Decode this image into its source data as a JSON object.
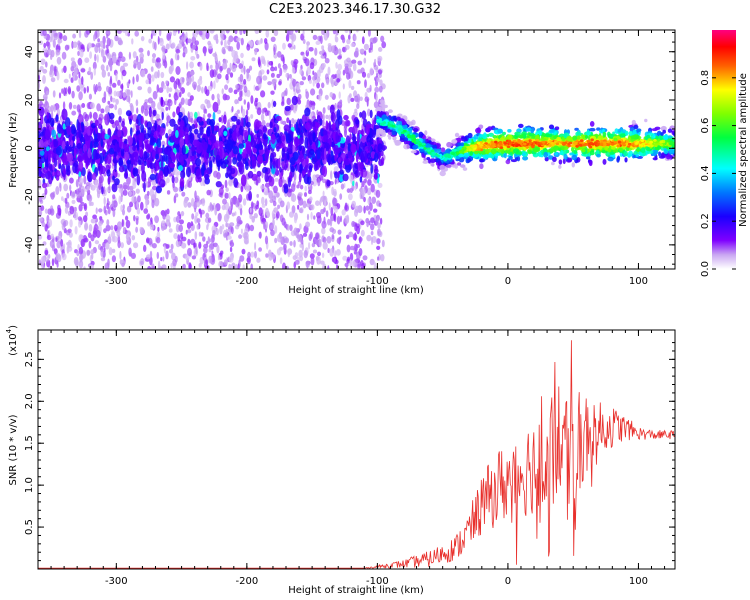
{
  "title": "C2E3.2023.346.17.30.G32",
  "chart_data": [
    {
      "type": "heatmap",
      "xlabel": "Height of straight line (km)",
      "ylabel": "Frequency (Hz)",
      "xlim": [
        -360,
        128
      ],
      "ylim": [
        -50,
        49
      ],
      "x_ticks": [
        -300,
        -200,
        -100,
        0,
        100
      ],
      "y_ticks": [
        -40,
        -20,
        0,
        20,
        40
      ],
      "colorbar": {
        "label": "Normalized spectral amplitude",
        "range": [
          0.0,
          1.0
        ],
        "ticks": [
          "0.0",
          "0.2",
          "0.4",
          "0.6",
          "0.8"
        ],
        "colormap": [
          "#ffffff",
          "#7f00ff",
          "#0000ff",
          "#00ffff",
          "#00ff00",
          "#ffff00",
          "#ff0000",
          "#ff0080"
        ]
      },
      "ridge": {
        "x": [
          -100,
          -90,
          -80,
          -70,
          -60,
          -50,
          -40,
          -30,
          -20,
          -10,
          0,
          20,
          40,
          60,
          80,
          100,
          128
        ],
        "y": [
          12,
          10,
          7,
          3,
          -1,
          -4,
          -2,
          0,
          1,
          1.5,
          2,
          2,
          2,
          2,
          2,
          2,
          2
        ],
        "amplitude": [
          0.4,
          0.5,
          0.5,
          0.55,
          0.5,
          0.45,
          0.5,
          0.7,
          0.8,
          0.85,
          0.85,
          0.85,
          0.8,
          0.85,
          0.85,
          0.8,
          0.6
        ]
      },
      "noise_region": {
        "x_range": [
          -360,
          -95
        ],
        "band_center": 0,
        "band_halfwidth": 10
      }
    },
    {
      "type": "line",
      "xlabel": "Height of straight line (km)",
      "ylabel": "SNR (10 * v/v)",
      "multiplier": "(x10",
      "multiplier_exp": "4",
      "multiplier_close": ")",
      "xlim": [
        -360,
        128
      ],
      "ylim": [
        0,
        2.85
      ],
      "x_ticks": [
        -300,
        -200,
        -100,
        0,
        100
      ],
      "y_ticks": [
        "0.5",
        "1.0",
        "1.5",
        "2.0",
        "2.5"
      ],
      "series": [
        {
          "color": "#e8302c",
          "envelope": {
            "x": [
              -360,
              -110,
              -80,
              -60,
              -40,
              -30,
              -20,
              -10,
              0,
              10,
              20,
              30,
              40,
              50,
              55,
              60,
              70,
              80,
              90,
              100,
              110,
              128
            ],
            "mean": [
              0.01,
              0.01,
              0.06,
              0.12,
              0.25,
              0.45,
              0.75,
              0.95,
              1.05,
              1.15,
              1.25,
              1.35,
              1.45,
              1.5,
              1.55,
              1.6,
              1.65,
              1.7,
              1.68,
              1.62,
              1.6,
              1.6
            ],
            "spread": [
              0.0,
              0.0,
              0.05,
              0.1,
              0.15,
              0.25,
              0.35,
              0.45,
              0.5,
              0.55,
              0.6,
              0.65,
              0.7,
              0.75,
              0.75,
              0.6,
              0.35,
              0.25,
              0.15,
              0.08,
              0.06,
              0.05
            ]
          }
        }
      ]
    }
  ]
}
